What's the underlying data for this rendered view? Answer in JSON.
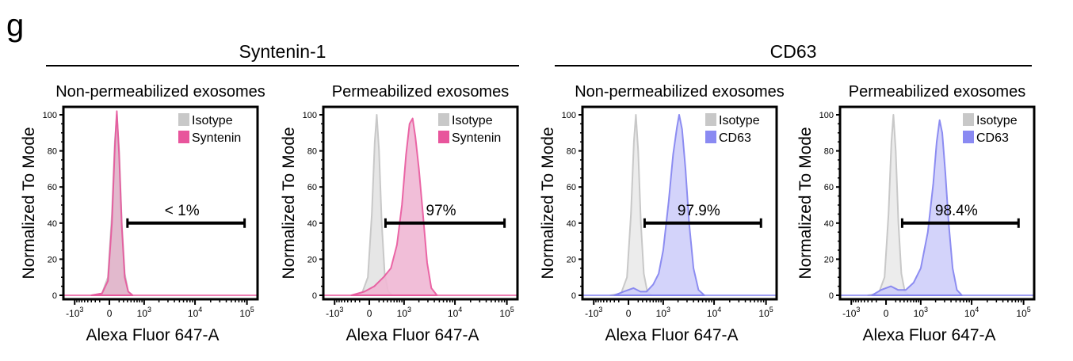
{
  "panel_letter": "g",
  "groups": [
    {
      "title": "Syntenin-1"
    },
    {
      "title": "CD63"
    }
  ],
  "chart_data": [
    {
      "type": "area",
      "title": "Non-permeabilized exosomes",
      "xlabel": "Alexa Fluor 647-A",
      "ylabel": "Normalized To Mode",
      "x_scale": "biexponential",
      "x_ticks": [
        {
          "value": -1000,
          "label": "-10",
          "exp": "3"
        },
        {
          "value": 0,
          "label": "0",
          "exp": ""
        },
        {
          "value": 1000,
          "label": "10",
          "exp": "3"
        },
        {
          "value": 10000,
          "label": "10",
          "exp": "4"
        },
        {
          "value": 100000,
          "label": "10",
          "exp": "5"
        }
      ],
      "y_ticks": [
        0,
        20,
        40,
        60,
        80,
        100
      ],
      "ylim": [
        0,
        100
      ],
      "legend_position": "top-right",
      "series": [
        {
          "name": "Isotype",
          "color": "#c8c8c8",
          "fill": "#d9d9d9",
          "points": [
            [
              -400,
              0
            ],
            [
              -150,
              1
            ],
            [
              -30,
              10
            ],
            [
              50,
              45
            ],
            [
              110,
              85
            ],
            [
              150,
              100
            ],
            [
              200,
              80
            ],
            [
              260,
              40
            ],
            [
              330,
              12
            ],
            [
              420,
              2
            ],
            [
              550,
              0
            ]
          ]
        },
        {
          "name": "Syntenin",
          "color": "#e8559c",
          "fill": "#e3b6cc",
          "points": [
            [
              -400,
              0
            ],
            [
              -150,
              1
            ],
            [
              -30,
              8
            ],
            [
              50,
              40
            ],
            [
              110,
              82
            ],
            [
              150,
              102
            ],
            [
              200,
              78
            ],
            [
              260,
              38
            ],
            [
              330,
              10
            ],
            [
              420,
              2
            ],
            [
              550,
              0
            ]
          ]
        }
      ],
      "gate": {
        "label": "< 1%",
        "from": 400,
        "to": 90000,
        "y": 40
      }
    },
    {
      "type": "area",
      "title": "Permeabilized exosomes",
      "xlabel": "Alexa Fluor 647-A",
      "ylabel": "Normalized To Mode",
      "x_scale": "biexponential",
      "x_ticks": [
        {
          "value": -1000,
          "label": "-10",
          "exp": "3"
        },
        {
          "value": 0,
          "label": "0",
          "exp": ""
        },
        {
          "value": 1000,
          "label": "10",
          "exp": "3"
        },
        {
          "value": 10000,
          "label": "10",
          "exp": "4"
        },
        {
          "value": 100000,
          "label": "10",
          "exp": "5"
        }
      ],
      "y_ticks": [
        0,
        20,
        40,
        60,
        80,
        100
      ],
      "ylim": [
        0,
        100
      ],
      "legend_position": "top-right",
      "series": [
        {
          "name": "Isotype",
          "color": "#c8c8c8",
          "fill": "#e6e6e6",
          "points": [
            [
              -400,
              0
            ],
            [
              -150,
              1
            ],
            [
              -30,
              10
            ],
            [
              50,
              45
            ],
            [
              110,
              85
            ],
            [
              150,
              100
            ],
            [
              200,
              80
            ],
            [
              260,
              40
            ],
            [
              330,
              12
            ],
            [
              420,
              2
            ],
            [
              550,
              0
            ]
          ]
        },
        {
          "name": "Syntenin",
          "color": "#e8559c",
          "fill": "#f0b8d4",
          "points": [
            [
              -400,
              0
            ],
            [
              -100,
              2
            ],
            [
              100,
              5
            ],
            [
              300,
              10
            ],
            [
              500,
              15
            ],
            [
              700,
              28
            ],
            [
              900,
              50
            ],
            [
              1100,
              78
            ],
            [
              1300,
              95
            ],
            [
              1500,
              98
            ],
            [
              1700,
              88
            ],
            [
              2000,
              70
            ],
            [
              2400,
              45
            ],
            [
              2900,
              18
            ],
            [
              3500,
              4
            ],
            [
              4500,
              0
            ]
          ]
        }
      ],
      "gate": {
        "label": "97%",
        "from": 350,
        "to": 90000,
        "y": 40
      }
    },
    {
      "type": "area",
      "title": "Non-permeabilized exosomes",
      "xlabel": "Alexa Fluor 647-A",
      "ylabel": "Normalized To Mode",
      "x_scale": "biexponential",
      "x_ticks": [
        {
          "value": -1000,
          "label": "-10",
          "exp": "3"
        },
        {
          "value": 0,
          "label": "0",
          "exp": ""
        },
        {
          "value": 1000,
          "label": "10",
          "exp": "3"
        },
        {
          "value": 10000,
          "label": "10",
          "exp": "4"
        },
        {
          "value": 100000,
          "label": "10",
          "exp": "5"
        }
      ],
      "y_ticks": [
        0,
        20,
        40,
        60,
        80,
        100
      ],
      "ylim": [
        0,
        100
      ],
      "legend_position": "top-right",
      "series": [
        {
          "name": "Isotype",
          "color": "#c8c8c8",
          "fill": "#ececec",
          "points": [
            [
              -400,
              0
            ],
            [
              -150,
              1
            ],
            [
              -30,
              10
            ],
            [
              50,
              45
            ],
            [
              110,
              85
            ],
            [
              150,
              100
            ],
            [
              200,
              80
            ],
            [
              260,
              40
            ],
            [
              330,
              12
            ],
            [
              420,
              2
            ],
            [
              550,
              0
            ]
          ]
        },
        {
          "name": "CD63",
          "color": "#8080f0",
          "fill": "#cfcffa",
          "points": [
            [
              -300,
              0
            ],
            [
              -100,
              2
            ],
            [
              100,
              4
            ],
            [
              250,
              2
            ],
            [
              400,
              2
            ],
            [
              600,
              6
            ],
            [
              800,
              12
            ],
            [
              1000,
              25
            ],
            [
              1300,
              52
            ],
            [
              1600,
              78
            ],
            [
              1900,
              93
            ],
            [
              2100,
              100
            ],
            [
              2400,
              92
            ],
            [
              2800,
              70
            ],
            [
              3300,
              40
            ],
            [
              4000,
              15
            ],
            [
              5000,
              3
            ],
            [
              6500,
              0
            ]
          ]
        }
      ],
      "gate": {
        "label": "97.9%",
        "from": 350,
        "to": 80000,
        "y": 40
      }
    },
    {
      "type": "area",
      "title": "Permeabilized exosomes",
      "xlabel": "Alexa Fluor 647-A",
      "ylabel": "Normalized To Mode",
      "x_scale": "biexponential",
      "x_ticks": [
        {
          "value": -1000,
          "label": "-10",
          "exp": "3"
        },
        {
          "value": 0,
          "label": "0",
          "exp": ""
        },
        {
          "value": 1000,
          "label": "10",
          "exp": "3"
        },
        {
          "value": 10000,
          "label": "10",
          "exp": "4"
        },
        {
          "value": 100000,
          "label": "10",
          "exp": "5"
        }
      ],
      "y_ticks": [
        0,
        20,
        40,
        60,
        80,
        100
      ],
      "ylim": [
        0,
        100
      ],
      "legend_position": "top-right",
      "series": [
        {
          "name": "Isotype",
          "color": "#c8c8c8",
          "fill": "#ececec",
          "points": [
            [
              -400,
              0
            ],
            [
              -150,
              1
            ],
            [
              -30,
              10
            ],
            [
              50,
              45
            ],
            [
              110,
              85
            ],
            [
              150,
              100
            ],
            [
              200,
              80
            ],
            [
              260,
              40
            ],
            [
              330,
              12
            ],
            [
              420,
              2
            ],
            [
              550,
              0
            ]
          ]
        },
        {
          "name": "CD63",
          "color": "#8080f0",
          "fill": "#cfcffa",
          "points": [
            [
              -300,
              0
            ],
            [
              -100,
              3
            ],
            [
              100,
              5
            ],
            [
              250,
              3
            ],
            [
              450,
              3
            ],
            [
              700,
              7
            ],
            [
              1000,
              15
            ],
            [
              1400,
              35
            ],
            [
              1800,
              62
            ],
            [
              2100,
              85
            ],
            [
              2400,
              97
            ],
            [
              2700,
              90
            ],
            [
              3100,
              68
            ],
            [
              3600,
              40
            ],
            [
              4300,
              15
            ],
            [
              5200,
              3
            ],
            [
              6500,
              0
            ]
          ]
        }
      ],
      "gate": {
        "label": "98.4%",
        "from": 350,
        "to": 80000,
        "y": 40
      }
    }
  ]
}
